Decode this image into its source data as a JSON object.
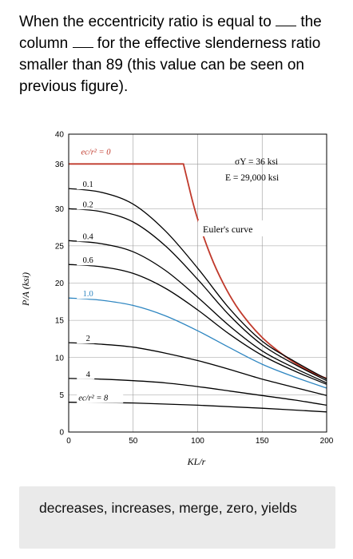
{
  "question": {
    "part1": "When the eccentricity ratio is equal to ",
    "part2": " the column ",
    "part3": " for the effective slenderness ratio smaller than 89 (this value can be seen on previous figure)."
  },
  "chart_data": {
    "type": "line",
    "title": "",
    "xlabel": "KL/r",
    "ylabel": "P/A (ksi)",
    "xlim": [
      0,
      200
    ],
    "ylim": [
      0,
      40
    ],
    "x_ticks": [
      "0",
      "50",
      "100",
      "150",
      "200"
    ],
    "y_ticks": [
      "0",
      "5",
      "10",
      "15",
      "20",
      "25",
      "30",
      "36",
      "40"
    ],
    "properties": [
      "σY = 36 ksi",
      "E = 29,000 ksi"
    ],
    "euler_label": "Euler's curve",
    "series": [
      {
        "name": "ec/r² = 0",
        "color": "#c0392b",
        "x": [
          0,
          89,
          95,
          100,
          110,
          120,
          130,
          140,
          150,
          160,
          170,
          180,
          190,
          200
        ],
        "values": [
          36,
          36,
          31.7,
          28.6,
          23.7,
          19.9,
          16.9,
          14.6,
          12.7,
          11.2,
          9.9,
          8.8,
          7.9,
          7.2
        ]
      },
      {
        "name": "0.1",
        "color": "#000000",
        "x": [
          0,
          25,
          50,
          75,
          100,
          125,
          150,
          175,
          200
        ],
        "values": [
          32.7,
          32.2,
          30.6,
          27.0,
          22.0,
          16.5,
          12.2,
          9.5,
          7.1
        ]
      },
      {
        "name": "0.2",
        "color": "#000000",
        "x": [
          0,
          25,
          50,
          75,
          100,
          125,
          150,
          175,
          200
        ],
        "values": [
          30.0,
          29.6,
          28.2,
          25.0,
          20.5,
          15.6,
          11.7,
          9.1,
          6.9
        ]
      },
      {
        "name": "0.4",
        "color": "#000000",
        "x": [
          0,
          25,
          50,
          75,
          100,
          125,
          150,
          175,
          200
        ],
        "values": [
          25.7,
          25.3,
          24.2,
          21.7,
          18.1,
          14.2,
          10.9,
          8.6,
          6.6
        ]
      },
      {
        "name": "0.6",
        "color": "#000000",
        "x": [
          0,
          25,
          50,
          75,
          100,
          125,
          150,
          175,
          200
        ],
        "values": [
          22.5,
          22.2,
          21.3,
          19.3,
          16.4,
          13.1,
          10.3,
          8.2,
          6.4
        ]
      },
      {
        "name": "1.0",
        "color": "#2e86c1",
        "x": [
          0,
          25,
          50,
          75,
          100,
          125,
          150,
          175,
          200
        ],
        "values": [
          18.0,
          17.7,
          17.0,
          15.6,
          13.6,
          11.3,
          9.1,
          7.4,
          5.9
        ]
      },
      {
        "name": "2",
        "color": "#000000",
        "x": [
          0,
          25,
          50,
          75,
          100,
          125,
          150,
          175,
          200
        ],
        "values": [
          12.0,
          11.8,
          11.4,
          10.6,
          9.6,
          8.4,
          7.1,
          6.0,
          4.9
        ]
      },
      {
        "name": "4",
        "color": "#000000",
        "x": [
          0,
          25,
          50,
          75,
          100,
          125,
          150,
          175,
          200
        ],
        "values": [
          7.2,
          7.1,
          6.9,
          6.6,
          6.1,
          5.5,
          4.9,
          4.3,
          3.6
        ]
      },
      {
        "name": "ec/r² = 8",
        "color": "#000000",
        "x": [
          0,
          50,
          100,
          150,
          200
        ],
        "values": [
          4.0,
          3.9,
          3.6,
          3.2,
          2.7
        ]
      }
    ]
  },
  "answers": {
    "text": "decreases, increases, merge, zero, yields"
  }
}
